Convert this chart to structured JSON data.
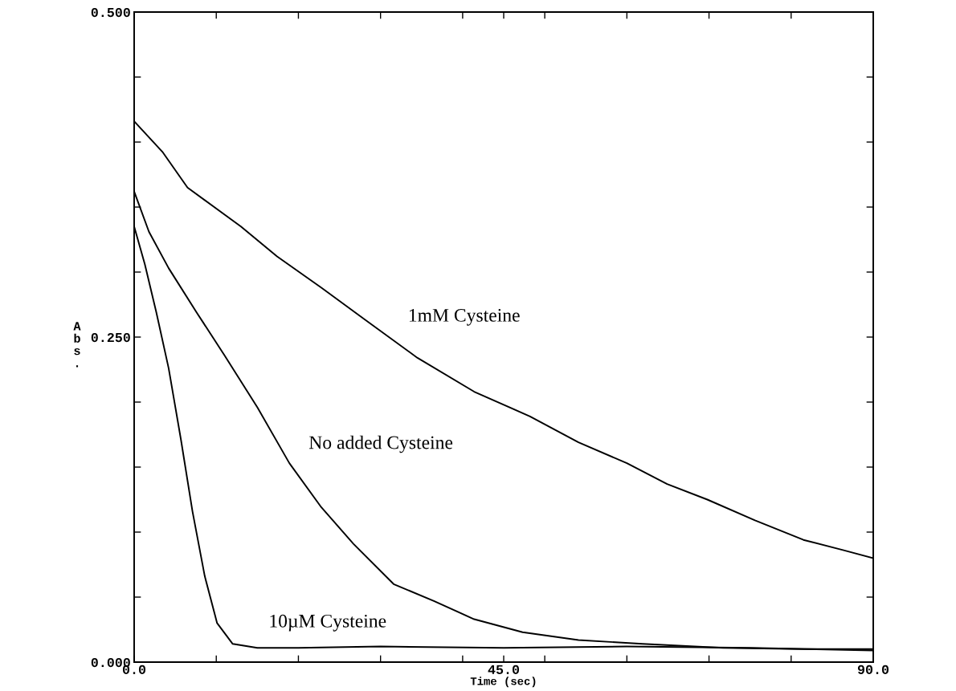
{
  "chart_data": {
    "type": "line",
    "xlabel": "Time (sec)",
    "ylabel": "Abs.",
    "series": [
      {
        "name": "1mM Cysteine",
        "color": "#000000",
        "x": [
          0,
          3.5,
          6.5,
          13,
          17.4,
          22.8,
          28.2,
          34.5,
          41.4,
          48.2,
          54.1,
          60,
          64.9,
          69.8,
          75.6,
          81.5,
          86.4,
          90
        ],
        "values": [
          0.416,
          0.392,
          0.365,
          0.335,
          0.312,
          0.288,
          0.263,
          0.234,
          0.208,
          0.189,
          0.169,
          0.153,
          0.137,
          0.125,
          0.109,
          0.094,
          0.086,
          0.08
        ]
      },
      {
        "name": "No added Cysteine",
        "color": "#000000",
        "x": [
          0,
          1.8,
          4.2,
          7.6,
          11,
          15,
          18.9,
          22.8,
          26.7,
          31.6,
          36.5,
          41.4,
          47.3,
          54.1,
          61.9,
          71.7,
          81.5,
          90
        ],
        "values": [
          0.362,
          0.331,
          0.303,
          0.269,
          0.236,
          0.196,
          0.153,
          0.119,
          0.091,
          0.06,
          0.047,
          0.033,
          0.023,
          0.017,
          0.014,
          0.011,
          0.01,
          0.01
        ]
      },
      {
        "name": "10µM Cysteine",
        "color": "#000000",
        "x": [
          0,
          1.3,
          2.7,
          4.2,
          5.7,
          7.1,
          8.6,
          10.1,
          12,
          15,
          20,
          30,
          45,
          60,
          75,
          90
        ],
        "values": [
          0.335,
          0.306,
          0.269,
          0.226,
          0.171,
          0.116,
          0.066,
          0.03,
          0.014,
          0.011,
          0.011,
          0.012,
          0.011,
          0.012,
          0.011,
          0.009
        ]
      }
    ],
    "xlim": [
      0,
      90
    ],
    "ylim": [
      0,
      0.5
    ],
    "xticks": [
      {
        "value": 0,
        "label": "0.0"
      },
      {
        "value": 10,
        "label": null
      },
      {
        "value": 20,
        "label": null
      },
      {
        "value": 30,
        "label": null
      },
      {
        "value": 40,
        "label": null
      },
      {
        "value": 45,
        "label": "45.0"
      },
      {
        "value": 50,
        "label": null
      },
      {
        "value": 60,
        "label": null
      },
      {
        "value": 70,
        "label": null
      },
      {
        "value": 80,
        "label": null
      },
      {
        "value": 90,
        "label": "90.0"
      }
    ],
    "yticks": [
      {
        "value": 0,
        "label": "0.000"
      },
      {
        "value": 0.05,
        "label": null
      },
      {
        "value": 0.1,
        "label": null
      },
      {
        "value": 0.15,
        "label": null
      },
      {
        "value": 0.2,
        "label": null
      },
      {
        "value": 0.25,
        "label": "0.250"
      },
      {
        "value": 0.3,
        "label": null
      },
      {
        "value": 0.35,
        "label": null
      },
      {
        "value": 0.4,
        "label": null
      },
      {
        "value": 0.45,
        "label": null
      },
      {
        "value": 0.5,
        "label": "0.500"
      }
    ],
    "grid": false,
    "legend": false
  }
}
